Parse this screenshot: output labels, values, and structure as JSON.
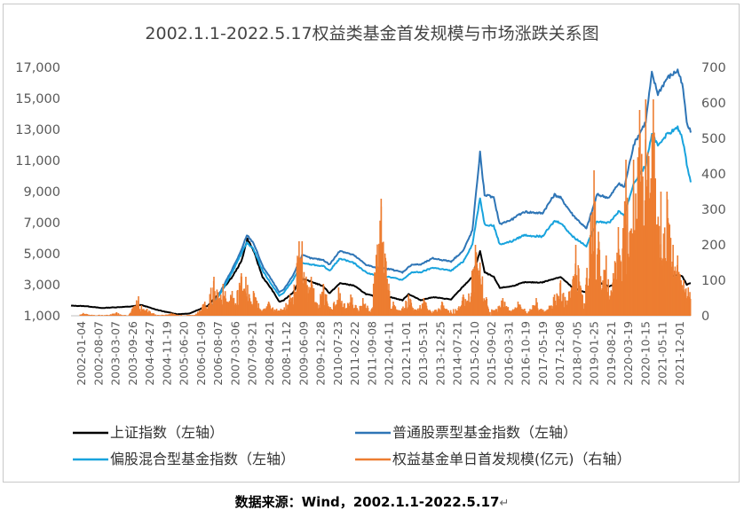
{
  "chart_data": {
    "type": "line",
    "title": "2002.1.1-2022.5.17权益类基金首发规模与市场涨跌关系图",
    "left_axis": {
      "ticks": [
        "1,000",
        "3,000",
        "5,000",
        "7,000",
        "9,000",
        "11,000",
        "13,000",
        "15,000",
        "17,000"
      ],
      "range": [
        1000,
        17000
      ]
    },
    "right_axis": {
      "ticks": [
        "0",
        "100",
        "200",
        "300",
        "400",
        "500",
        "600",
        "700"
      ],
      "range": [
        0,
        700
      ]
    },
    "x_ticks": [
      "2002-01-04",
      "2002-08-07",
      "2003-03-07",
      "2003-09-26",
      "2004-04-27",
      "2004-11-19",
      "2005-06-20",
      "2006-01-09",
      "2006-08-07",
      "2007-03-06",
      "2007-09-21",
      "2008-04-21",
      "2008-11-12",
      "2009-06-09",
      "2009-12-28",
      "2010-07-23",
      "2011-02-22",
      "2011-09-08",
      "2012-04-11",
      "2012-11-01",
      "2013-05-31",
      "2013-12-25",
      "2014-07-21",
      "2015-02-10",
      "2015-09-02",
      "2016-03-31",
      "2016-10-19",
      "2017-05-19",
      "2017-12-08",
      "2018-07-05",
      "2019-01-25",
      "2019-08-21",
      "2020-03-19",
      "2020-10-15",
      "2021-05-11",
      "2021-12-01"
    ],
    "x_range": [
      2002.0,
      2022.38
    ],
    "grid": false,
    "legend_position": "bottom",
    "series": [
      {
        "name": "上证指数（左轴）",
        "axis": "left",
        "color": "#000000",
        "points": [
          [
            2002.0,
            1650
          ],
          [
            2002.5,
            1620
          ],
          [
            2003.0,
            1500
          ],
          [
            2003.5,
            1550
          ],
          [
            2004.0,
            1600
          ],
          [
            2004.3,
            1700
          ],
          [
            2004.8,
            1400
          ],
          [
            2005.0,
            1300
          ],
          [
            2005.5,
            1100
          ],
          [
            2005.9,
            1150
          ],
          [
            2006.5,
            1650
          ],
          [
            2006.9,
            2500
          ],
          [
            2007.3,
            3500
          ],
          [
            2007.6,
            4500
          ],
          [
            2007.8,
            5950
          ],
          [
            2008.0,
            5200
          ],
          [
            2008.3,
            3500
          ],
          [
            2008.6,
            2700
          ],
          [
            2008.85,
            1900
          ],
          [
            2009.0,
            2000
          ],
          [
            2009.3,
            2500
          ],
          [
            2009.55,
            3400
          ],
          [
            2009.9,
            3200
          ],
          [
            2010.3,
            2900
          ],
          [
            2010.5,
            2450
          ],
          [
            2010.85,
            3100
          ],
          [
            2011.3,
            2950
          ],
          [
            2011.7,
            2400
          ],
          [
            2012.0,
            2250
          ],
          [
            2012.5,
            2200
          ],
          [
            2012.9,
            2000
          ],
          [
            2013.1,
            2400
          ],
          [
            2013.5,
            2000
          ],
          [
            2013.9,
            2200
          ],
          [
            2014.5,
            2050
          ],
          [
            2014.9,
            2900
          ],
          [
            2015.2,
            3500
          ],
          [
            2015.45,
            5180
          ],
          [
            2015.6,
            3800
          ],
          [
            2015.9,
            3500
          ],
          [
            2016.1,
            2800
          ],
          [
            2016.5,
            2900
          ],
          [
            2016.9,
            3150
          ],
          [
            2017.5,
            3150
          ],
          [
            2017.9,
            3400
          ],
          [
            2018.1,
            3500
          ],
          [
            2018.5,
            2800
          ],
          [
            2018.95,
            2480
          ],
          [
            2019.3,
            3200
          ],
          [
            2019.7,
            2900
          ],
          [
            2020.0,
            3050
          ],
          [
            2020.2,
            2700
          ],
          [
            2020.5,
            3300
          ],
          [
            2020.9,
            3400
          ],
          [
            2021.1,
            3650
          ],
          [
            2021.5,
            3550
          ],
          [
            2021.9,
            3600
          ],
          [
            2022.1,
            3550
          ],
          [
            2022.25,
            3000
          ],
          [
            2022.38,
            3090
          ]
        ]
      },
      {
        "name": "普通股票型基金指数（左轴）",
        "axis": "left",
        "color": "#2e75b6",
        "points": [
          [
            2006.6,
            1500
          ],
          [
            2006.9,
            2500
          ],
          [
            2007.3,
            4000
          ],
          [
            2007.6,
            5200
          ],
          [
            2007.78,
            6200
          ],
          [
            2008.0,
            5700
          ],
          [
            2008.3,
            4200
          ],
          [
            2008.6,
            3300
          ],
          [
            2008.85,
            2500
          ],
          [
            2009.0,
            2700
          ],
          [
            2009.3,
            3600
          ],
          [
            2009.6,
            4900
          ],
          [
            2009.9,
            4700
          ],
          [
            2010.3,
            4600
          ],
          [
            2010.5,
            4300
          ],
          [
            2010.85,
            5200
          ],
          [
            2011.3,
            4900
          ],
          [
            2011.7,
            4300
          ],
          [
            2012.0,
            4100
          ],
          [
            2012.5,
            4000
          ],
          [
            2012.9,
            3800
          ],
          [
            2013.2,
            4300
          ],
          [
            2013.5,
            4300
          ],
          [
            2013.9,
            4700
          ],
          [
            2014.5,
            4500
          ],
          [
            2014.9,
            5200
          ],
          [
            2015.2,
            6500
          ],
          [
            2015.45,
            11500
          ],
          [
            2015.6,
            8800
          ],
          [
            2015.9,
            8600
          ],
          [
            2016.1,
            6900
          ],
          [
            2016.5,
            7200
          ],
          [
            2016.9,
            7700
          ],
          [
            2017.5,
            7600
          ],
          [
            2017.9,
            8800
          ],
          [
            2018.1,
            8600
          ],
          [
            2018.5,
            7500
          ],
          [
            2018.95,
            6600
          ],
          [
            2019.3,
            8800
          ],
          [
            2019.7,
            8600
          ],
          [
            2020.0,
            9500
          ],
          [
            2020.2,
            9300
          ],
          [
            2020.5,
            12000
          ],
          [
            2020.9,
            13500
          ],
          [
            2021.1,
            16600
          ],
          [
            2021.3,
            15300
          ],
          [
            2021.6,
            16300
          ],
          [
            2021.95,
            16800
          ],
          [
            2022.1,
            16000
          ],
          [
            2022.25,
            13500
          ],
          [
            2022.38,
            12800
          ]
        ]
      },
      {
        "name": "偏股混合型基金指数（左轴）",
        "axis": "left",
        "color": "#18a3dd",
        "points": [
          [
            2006.6,
            1500
          ],
          [
            2006.9,
            2400
          ],
          [
            2007.3,
            3800
          ],
          [
            2007.6,
            5000
          ],
          [
            2007.78,
            5700
          ],
          [
            2008.0,
            5300
          ],
          [
            2008.3,
            3900
          ],
          [
            2008.6,
            3000
          ],
          [
            2008.85,
            2300
          ],
          [
            2009.0,
            2500
          ],
          [
            2009.3,
            3300
          ],
          [
            2009.6,
            4400
          ],
          [
            2009.9,
            4300
          ],
          [
            2010.3,
            4200
          ],
          [
            2010.5,
            3900
          ],
          [
            2010.85,
            4700
          ],
          [
            2011.3,
            4400
          ],
          [
            2011.7,
            3800
          ],
          [
            2012.0,
            3600
          ],
          [
            2012.5,
            3500
          ],
          [
            2012.9,
            3300
          ],
          [
            2013.2,
            3800
          ],
          [
            2013.5,
            3800
          ],
          [
            2013.9,
            4100
          ],
          [
            2014.5,
            3900
          ],
          [
            2014.9,
            4500
          ],
          [
            2015.2,
            5600
          ],
          [
            2015.45,
            8600
          ],
          [
            2015.6,
            6900
          ],
          [
            2015.9,
            6800
          ],
          [
            2016.1,
            5600
          ],
          [
            2016.5,
            5800
          ],
          [
            2016.9,
            6200
          ],
          [
            2017.5,
            6100
          ],
          [
            2017.9,
            7100
          ],
          [
            2018.1,
            7000
          ],
          [
            2018.5,
            6100
          ],
          [
            2018.95,
            5500
          ],
          [
            2019.3,
            7100
          ],
          [
            2019.7,
            7000
          ],
          [
            2020.0,
            7700
          ],
          [
            2020.2,
            7500
          ],
          [
            2020.5,
            9500
          ],
          [
            2020.9,
            10700
          ],
          [
            2021.1,
            12700
          ],
          [
            2021.3,
            12000
          ],
          [
            2021.6,
            12700
          ],
          [
            2021.95,
            13100
          ],
          [
            2022.1,
            12500
          ],
          [
            2022.25,
            10800
          ],
          [
            2022.38,
            9600
          ]
        ]
      },
      {
        "name": "权益基金单日首发规模(亿元)（右轴）",
        "axis": "right",
        "color": "#ed7d31",
        "spikes": [
          [
            2002.4,
            8
          ],
          [
            2003.5,
            10
          ],
          [
            2004.22,
            55
          ],
          [
            2004.5,
            20
          ],
          [
            2005.3,
            8
          ],
          [
            2006.4,
            40
          ],
          [
            2006.7,
            110
          ],
          [
            2007.0,
            90
          ],
          [
            2007.3,
            70
          ],
          [
            2007.6,
            120
          ],
          [
            2007.75,
            110
          ],
          [
            2008.0,
            70
          ],
          [
            2008.5,
            40
          ],
          [
            2008.9,
            20
          ],
          [
            2009.2,
            60
          ],
          [
            2009.5,
            210
          ],
          [
            2009.6,
            210
          ],
          [
            2009.9,
            110
          ],
          [
            2010.3,
            90
          ],
          [
            2010.8,
            80
          ],
          [
            2011.2,
            60
          ],
          [
            2011.6,
            50
          ],
          [
            2012.2,
            330
          ],
          [
            2012.6,
            40
          ],
          [
            2013.1,
            60
          ],
          [
            2013.6,
            50
          ],
          [
            2014.2,
            40
          ],
          [
            2014.9,
            60
          ],
          [
            2015.3,
            200
          ],
          [
            2015.45,
            150
          ],
          [
            2016.2,
            50
          ],
          [
            2016.7,
            40
          ],
          [
            2017.3,
            50
          ],
          [
            2017.9,
            60
          ],
          [
            2018.1,
            100
          ],
          [
            2018.6,
            200
          ],
          [
            2019.2,
            410
          ],
          [
            2019.6,
            170
          ],
          [
            2020.0,
            250
          ],
          [
            2020.25,
            440
          ],
          [
            2020.5,
            440
          ],
          [
            2020.7,
            580
          ],
          [
            2020.9,
            610
          ],
          [
            2021.0,
            450
          ],
          [
            2021.15,
            610
          ],
          [
            2021.4,
            350
          ],
          [
            2021.6,
            350
          ],
          [
            2021.8,
            200
          ],
          [
            2021.95,
            170
          ],
          [
            2022.15,
            100
          ],
          [
            2022.3,
            80
          ]
        ]
      }
    ]
  },
  "legend": {
    "items": [
      {
        "label": "上证指数（左轴）",
        "color": "#000000"
      },
      {
        "label": "普通股票型基金指数（左轴）",
        "color": "#2e75b6"
      },
      {
        "label": "偏股混合型基金指数（左轴）",
        "color": "#18a3dd"
      },
      {
        "label": "权益基金单日首发规模(亿元)（右轴）",
        "color": "#ed7d31"
      }
    ]
  },
  "source_text": "数据来源：Wind，2002.1.1-2022.5.17",
  "return_mark": "↵"
}
